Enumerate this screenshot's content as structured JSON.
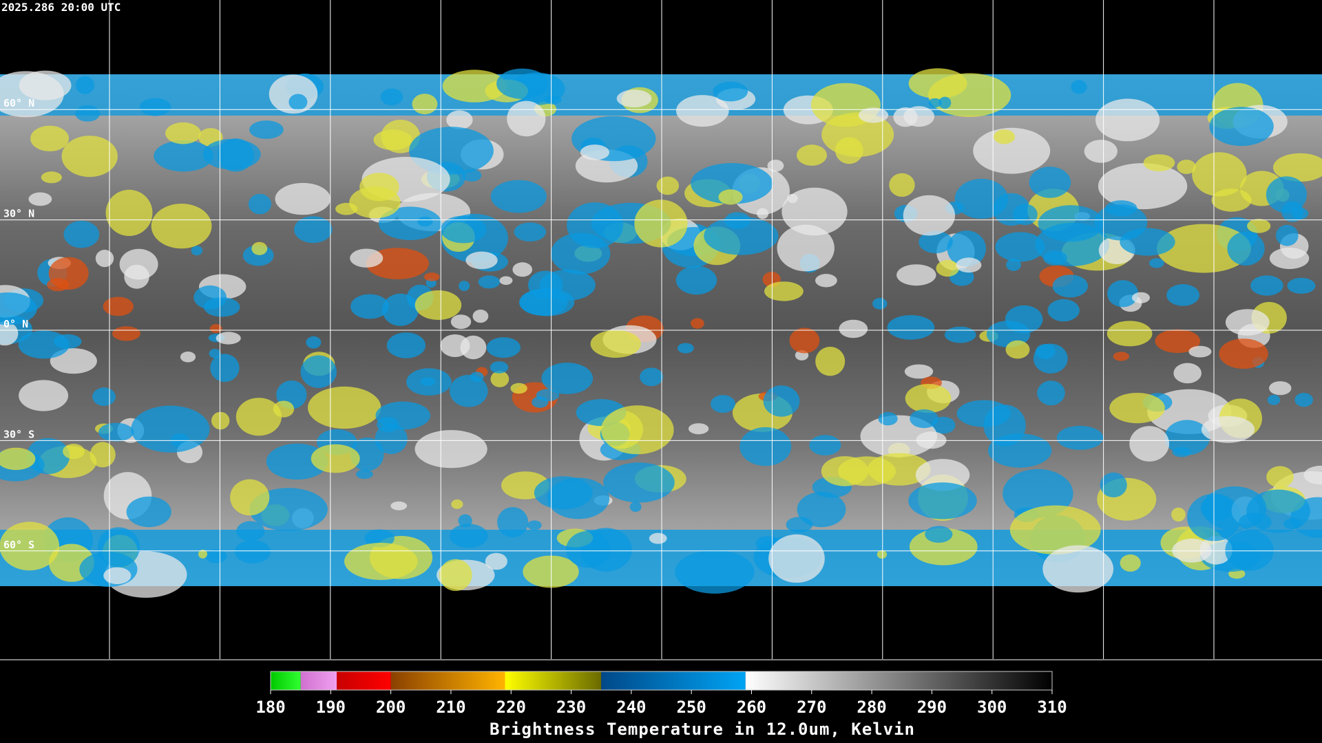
{
  "header": {
    "timestamp": "2025.286 20:00 UTC"
  },
  "map": {
    "latitude_labels": [
      "60° N",
      "30° N",
      "0° N",
      "30° S",
      "60° S"
    ]
  },
  "colorbar": {
    "title": "Brightness Temperature in 12.0um, Kelvin",
    "range": [
      180,
      310
    ],
    "ticks": [
      180,
      190,
      200,
      210,
      220,
      230,
      240,
      250,
      260,
      270,
      280,
      290,
      300,
      310
    ],
    "segments": [
      {
        "from": 180,
        "to": 185,
        "colors": [
          "#00c800",
          "#30ff30"
        ]
      },
      {
        "from": 185,
        "to": 191,
        "colors": [
          "#d070d0",
          "#f0a0f0"
        ]
      },
      {
        "from": 191,
        "to": 200,
        "colors": [
          "#c80000",
          "#ff0000"
        ]
      },
      {
        "from": 200,
        "to": 219,
        "colors": [
          "#8a4000",
          "#ffb400"
        ]
      },
      {
        "from": 219,
        "to": 235,
        "colors": [
          "#ffff00",
          "#6a6a00"
        ]
      },
      {
        "from": 235,
        "to": 259,
        "colors": [
          "#004888",
          "#00a4f4"
        ]
      },
      {
        "from": 259,
        "to": 310,
        "colors": [
          "#ffffff",
          "#000000"
        ]
      }
    ]
  }
}
